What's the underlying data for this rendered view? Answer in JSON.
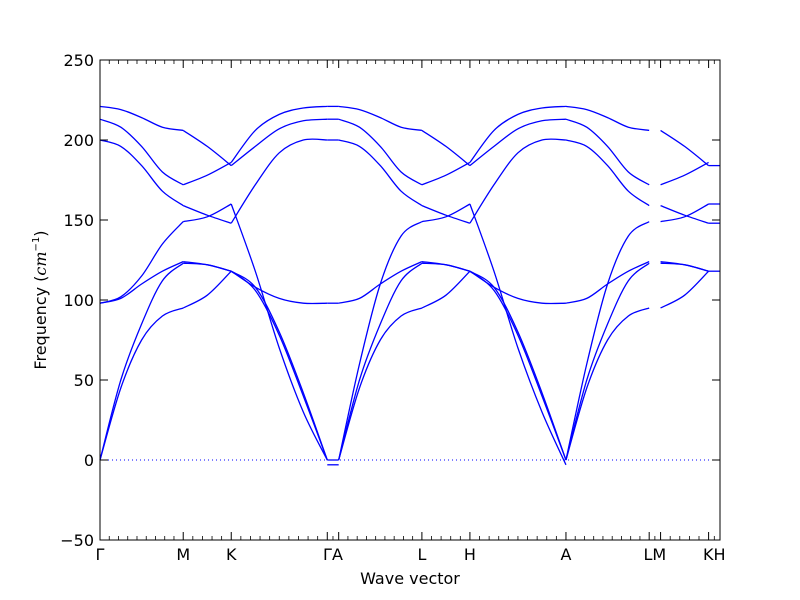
{
  "chart_data": {
    "type": "line",
    "title": "",
    "xlabel": "Wave vector",
    "ylabel_text": "Frequency (",
    "ylabel_unit_base": "cm",
    "ylabel_unit_exp": "−1",
    "ylabel_close": ")",
    "ylim": [
      -50,
      250
    ],
    "y_ticks": [
      -50,
      0,
      50,
      100,
      150,
      200,
      250
    ],
    "y_tick_labels": [
      "−50",
      "0",
      "50",
      "100",
      "150",
      "200",
      "250"
    ],
    "zero_line": {
      "value": 0,
      "style": "dotted",
      "color": "#0000ff"
    },
    "grid": false,
    "legend": "none",
    "line_color": "#0000ff",
    "high_symmetry_points": [
      {
        "label": "Γ",
        "x": 0.0
      },
      {
        "label": "M",
        "x": 1.0
      },
      {
        "label": "K",
        "x": 1.577
      },
      {
        "label": "Γ",
        "x": 2.731
      },
      {
        "label": "A",
        "x": 2.868
      },
      {
        "label": "L",
        "x": 3.868
      },
      {
        "label": "H",
        "x": 4.445
      },
      {
        "label": "A",
        "x": 5.599
      },
      {
        "label": "L",
        "x": 6.599
      },
      {
        "label": "M",
        "x": 6.736
      },
      {
        "label": "K",
        "x": 7.313
      },
      {
        "label": "H",
        "x": 7.45
      }
    ],
    "xlim": [
      0,
      7.45
    ],
    "segments": [
      {
        "from": "Γ",
        "to": "M",
        "x": [
          0.0,
          0.25,
          0.5,
          0.75,
          1.0
        ],
        "bands": [
          [
            0,
            45,
            75,
            90,
            95
          ],
          [
            0,
            50,
            85,
            112,
            123
          ],
          [
            98,
            101,
            110,
            118,
            124
          ],
          [
            98,
            102,
            115,
            135,
            149
          ],
          [
            200,
            196,
            184,
            168,
            159
          ],
          [
            213,
            208,
            196,
            180,
            172
          ],
          [
            221,
            219,
            214,
            208,
            206
          ]
        ]
      },
      {
        "from": "M",
        "to": "K",
        "x": [
          1.0,
          1.289,
          1.577
        ],
        "bands": [
          [
            95,
            103,
            118
          ],
          [
            123,
            122,
            118
          ],
          [
            124,
            122,
            118
          ],
          [
            149,
            152,
            160
          ],
          [
            159,
            153,
            148
          ],
          [
            172,
            178,
            186
          ],
          [
            206,
            196,
            184
          ]
        ]
      },
      {
        "from": "K",
        "to": "Γ",
        "x": [
          1.577,
          1.866,
          2.154,
          2.443,
          2.731
        ],
        "bands": [
          [
            118,
            106,
            78,
            40,
            0
          ],
          [
            118,
            108,
            80,
            42,
            0
          ],
          [
            118,
            108,
            101,
            98,
            98
          ],
          [
            148,
            172,
            192,
            200,
            200
          ],
          [
            160,
            118,
            70,
            30,
            0
          ],
          [
            184,
            196,
            207,
            212,
            213
          ],
          [
            186,
            206,
            216,
            220,
            221
          ]
        ]
      },
      {
        "from": "Γ",
        "to": "A",
        "x": [
          2.731,
          2.868
        ],
        "bands": [
          [
            -3,
            -3
          ],
          [
            0,
            0
          ],
          [
            98,
            98
          ],
          [
            200,
            200
          ],
          [
            213,
            213
          ],
          [
            221,
            221
          ]
        ]
      },
      {
        "from": "A",
        "to": "L",
        "x": [
          2.868,
          3.118,
          3.368,
          3.618,
          3.868
        ],
        "bands": [
          [
            0,
            45,
            75,
            90,
            95
          ],
          [
            0,
            50,
            85,
            112,
            123
          ],
          [
            98,
            101,
            110,
            118,
            124
          ],
          [
            0,
            60,
            110,
            140,
            149
          ],
          [
            200,
            196,
            184,
            168,
            159
          ],
          [
            213,
            208,
            196,
            180,
            172
          ],
          [
            221,
            219,
            214,
            208,
            206
          ]
        ]
      },
      {
        "from": "L",
        "to": "H",
        "x": [
          3.868,
          4.157,
          4.445
        ],
        "bands": [
          [
            95,
            103,
            118
          ],
          [
            123,
            122,
            118
          ],
          [
            124,
            122,
            118
          ],
          [
            149,
            152,
            160
          ],
          [
            159,
            153,
            148
          ],
          [
            172,
            178,
            186
          ],
          [
            206,
            196,
            184
          ]
        ]
      },
      {
        "from": "H",
        "to": "A",
        "x": [
          4.445,
          4.734,
          5.022,
          5.311,
          5.599
        ],
        "bands": [
          [
            118,
            106,
            78,
            40,
            0
          ],
          [
            118,
            108,
            80,
            42,
            0
          ],
          [
            118,
            108,
            101,
            98,
            98
          ],
          [
            148,
            172,
            192,
            200,
            200
          ],
          [
            160,
            118,
            70,
            30,
            -3
          ],
          [
            184,
            196,
            207,
            212,
            213
          ],
          [
            186,
            206,
            216,
            220,
            221
          ]
        ]
      },
      {
        "from": "A",
        "to": "L",
        "x": [
          5.599,
          5.849,
          6.099,
          6.349,
          6.599
        ],
        "bands": [
          [
            0,
            45,
            75,
            90,
            95
          ],
          [
            0,
            50,
            85,
            112,
            123
          ],
          [
            98,
            101,
            110,
            118,
            124
          ],
          [
            0,
            60,
            110,
            140,
            149
          ],
          [
            200,
            196,
            184,
            168,
            159
          ],
          [
            213,
            208,
            196,
            180,
            172
          ],
          [
            221,
            219,
            214,
            208,
            206
          ]
        ]
      },
      {
        "from": "M",
        "to": "K",
        "x": [
          6.736,
          7.025,
          7.313
        ],
        "bands": [
          [
            95,
            103,
            118
          ],
          [
            123,
            122,
            118
          ],
          [
            124,
            122,
            118
          ],
          [
            149,
            152,
            160
          ],
          [
            159,
            153,
            148
          ],
          [
            172,
            178,
            186
          ],
          [
            206,
            196,
            184
          ]
        ]
      },
      {
        "from": "H",
        "to": "H",
        "x": [
          7.313,
          7.45
        ],
        "bands": [
          [
            118,
            118
          ],
          [
            148,
            148
          ],
          [
            160,
            160
          ],
          [
            184,
            184
          ]
        ]
      }
    ]
  }
}
